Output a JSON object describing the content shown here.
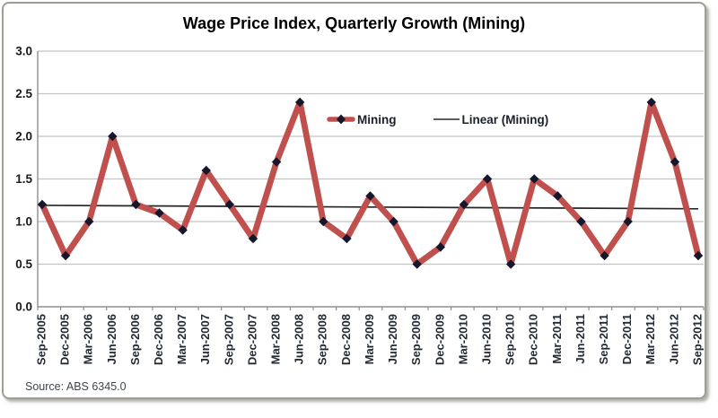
{
  "chart_data": {
    "type": "line",
    "title": "Wage Price Index, Quarterly Growth (Mining)",
    "xlabel": "",
    "ylabel": "",
    "categories": [
      "Sep-2005",
      "Dec-2005",
      "Mar-2006",
      "Jun-2006",
      "Sep-2006",
      "Dec-2006",
      "Mar-2007",
      "Jun-2007",
      "Sep-2007",
      "Dec-2007",
      "Mar-2008",
      "Jun-2008",
      "Sep-2008",
      "Dec-2008",
      "Mar-2009",
      "Jun-2009",
      "Sep-2009",
      "Dec-2009",
      "Mar-2010",
      "Jun-2010",
      "Sep-2010",
      "Dec-2010",
      "Mar-2011",
      "Jun-2011",
      "Sep-2011",
      "Dec-2011",
      "Mar-2012",
      "Jun-2012",
      "Sep-2012"
    ],
    "series": [
      {
        "name": "Mining",
        "color": "#C0504D",
        "marker": "diamond",
        "marker_color": "#16162C",
        "values": [
          1.2,
          0.6,
          1.0,
          2.0,
          1.2,
          1.1,
          0.9,
          1.6,
          1.2,
          0.8,
          1.7,
          2.4,
          1.0,
          0.8,
          1.3,
          1.0,
          0.5,
          0.7,
          1.2,
          1.5,
          0.5,
          1.5,
          1.3,
          1.0,
          0.6,
          1.0,
          2.4,
          1.7,
          0.6
        ]
      }
    ],
    "trendline": {
      "name": "Linear (Mining)",
      "color": "#262626",
      "start": 1.19,
      "end": 1.15
    },
    "ylim": [
      0.0,
      3.0
    ],
    "ytick_step": 0.5,
    "ytick_labels": [
      "0.0",
      "0.5",
      "1.0",
      "1.5",
      "2.0",
      "2.5",
      "3.0"
    ],
    "grid": true,
    "gridline_color": "#C4C4C4",
    "axis_color": "#8F8F8F",
    "legend_position": "inside-top-center"
  },
  "source": {
    "label": "Source: ABS 6345.0"
  }
}
